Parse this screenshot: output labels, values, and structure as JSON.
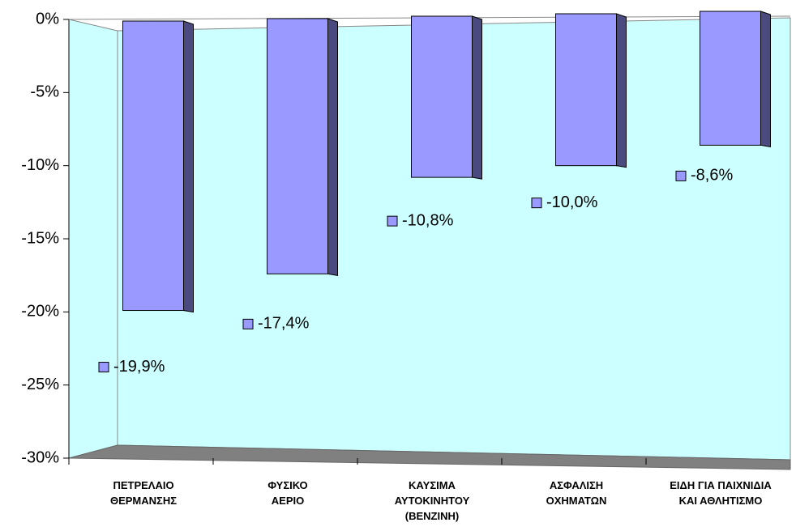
{
  "chart_data": {
    "type": "bar3d",
    "categories": [
      "ΠΕΤΡΕΛΑΙΟ\nΘΕΡΜΑΝΣΗΣ",
      "ΦΥΣΙΚΟ\nΑΕΡΙΟ",
      "ΚΑΥΣΙΜΑ\nΑΥΤΟΚΙΝΗΤΟΥ\n(ΒΕΝΖΙΝΗ)",
      "ΑΣΦΑΛΙΣΗ\nΟΧΗΜΑΤΩΝ",
      "ΕΙΔΗ ΓΙΑ ΠΑΙΧΝΙΔΙΑ\nΚΑΙ ΑΘΛΗΤΙΣΜΟ"
    ],
    "values": [
      -19.9,
      -17.4,
      -10.8,
      -10.0,
      -8.6
    ],
    "value_labels": [
      "-19,9%",
      "-17,4%",
      "-10,8%",
      "-10,0%",
      "-8,6%"
    ],
    "color": "#9999ff",
    "ylim": [
      -30,
      0
    ],
    "yticks": [
      {
        "value": 0,
        "label": "0%"
      },
      {
        "value": -5,
        "label": "-5%"
      },
      {
        "value": -10,
        "label": "-10%"
      },
      {
        "value": -15,
        "label": "-15%"
      },
      {
        "value": -20,
        "label": "-20%"
      },
      {
        "value": -25,
        "label": "-25%"
      },
      {
        "value": -30,
        "label": "-30%"
      }
    ],
    "grid": false
  }
}
